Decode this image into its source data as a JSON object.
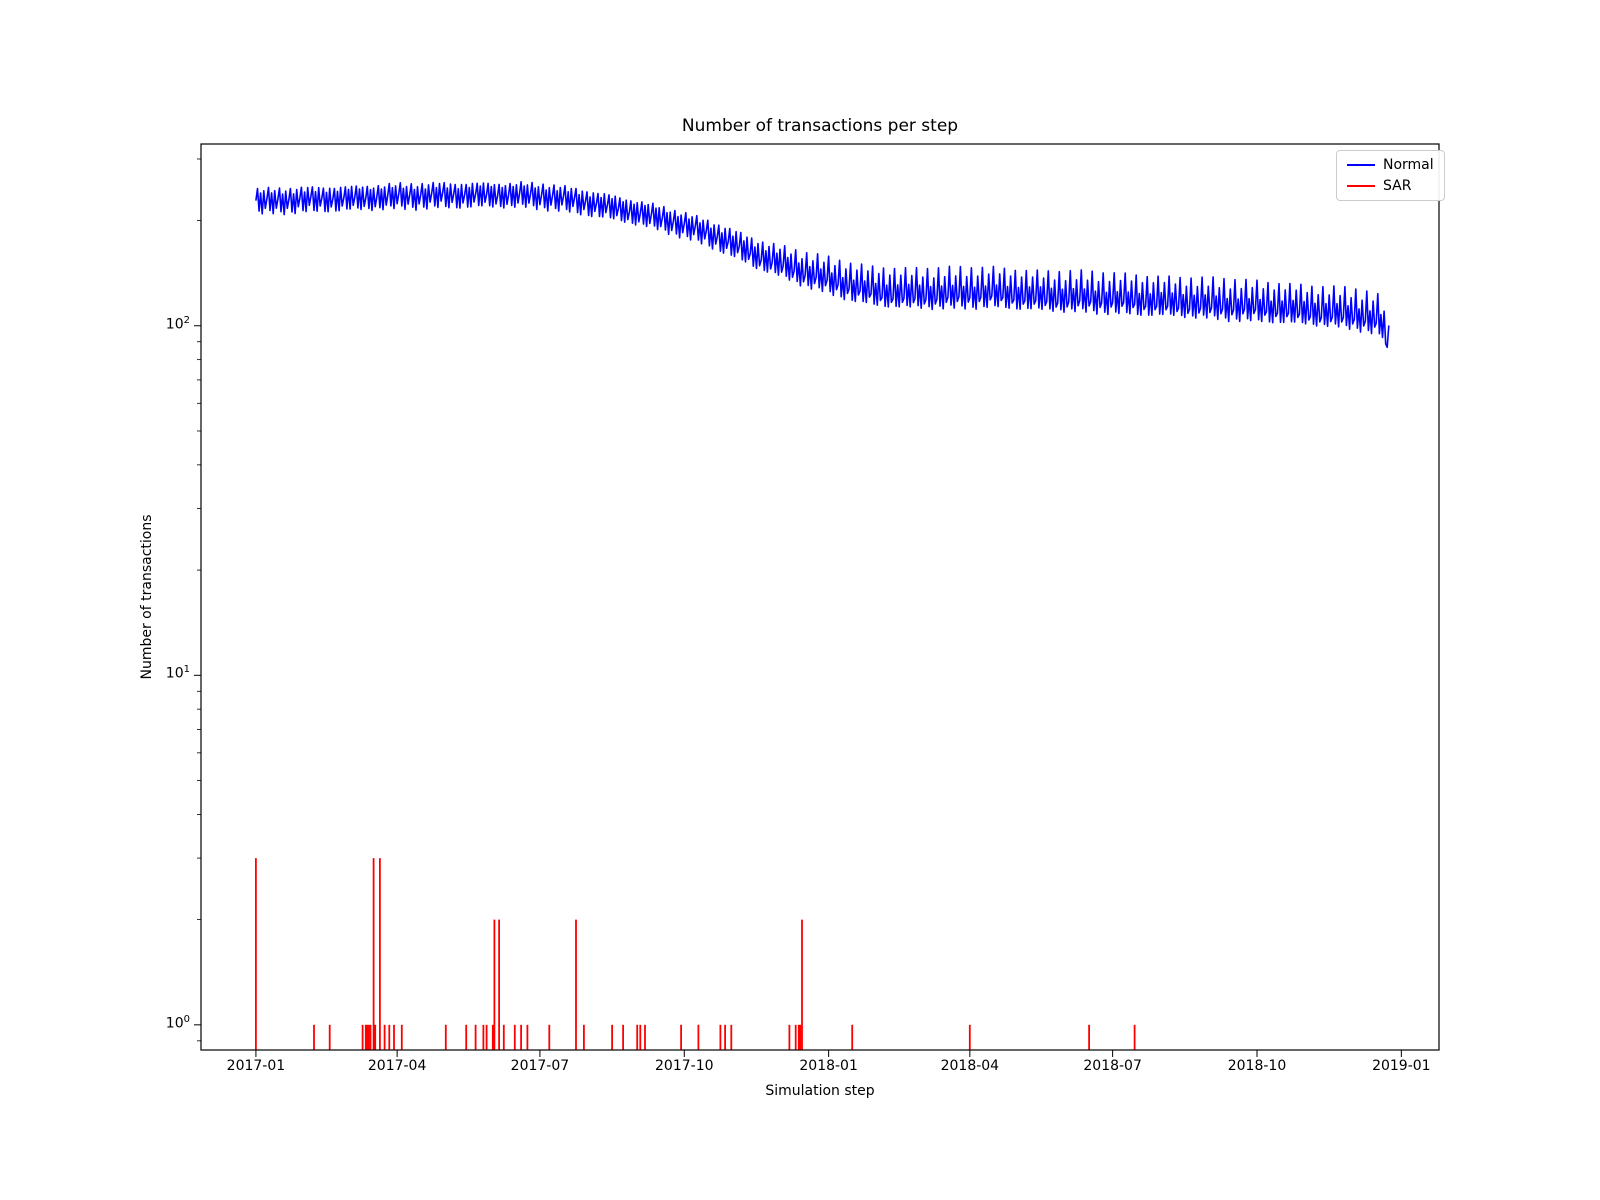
{
  "chart_data": {
    "type": "line",
    "title": "Number of transactions per step",
    "xlabel": "Simulation step",
    "ylabel": "Number of transactions",
    "yscale": "log",
    "grid": false,
    "legend_position": "upper right",
    "x_tick_labels": [
      "2017-01",
      "2017-04",
      "2017-07",
      "2017-10",
      "2018-01",
      "2018-04",
      "2018-07",
      "2018-10",
      "2019-01"
    ],
    "x_tick_days": [
      0,
      90,
      181,
      273,
      365,
      455,
      546,
      638,
      730
    ],
    "x_start_date": "2017-01-01",
    "x_range_days": [
      -35,
      754
    ],
    "y_tick_exponents": [
      0,
      1,
      2
    ],
    "y_tick_values": [
      1,
      10,
      100
    ],
    "y_log_range": [
      -0.072,
      2.52
    ],
    "series": [
      {
        "name": "Normal",
        "color": "#0000ff",
        "day_range": [
          0,
          722
        ],
        "trend": [
          [
            0,
            228
          ],
          [
            30,
            231
          ],
          [
            60,
            233
          ],
          [
            90,
            236
          ],
          [
            120,
            238
          ],
          [
            150,
            238
          ],
          [
            170,
            238
          ],
          [
            185,
            236
          ],
          [
            200,
            231
          ],
          [
            215,
            225
          ],
          [
            230,
            218
          ],
          [
            245,
            211
          ],
          [
            260,
            203
          ],
          [
            275,
            194
          ],
          [
            290,
            184
          ],
          [
            305,
            172
          ],
          [
            320,
            160
          ],
          [
            335,
            152
          ],
          [
            350,
            144
          ],
          [
            365,
            138
          ],
          [
            380,
            132
          ],
          [
            395,
            128
          ],
          [
            415,
            126
          ],
          [
            440,
            126
          ],
          [
            470,
            127
          ],
          [
            500,
            124
          ],
          [
            530,
            123
          ],
          [
            560,
            121
          ],
          [
            590,
            119
          ],
          [
            620,
            117
          ],
          [
            650,
            115
          ],
          [
            680,
            112
          ],
          [
            700,
            110
          ],
          [
            712,
            107
          ],
          [
            718,
            104
          ],
          [
            722,
            86
          ]
        ],
        "weekly_pattern_early": [
          1.0,
          1.075,
          0.925,
          1.045,
          0.915,
          1.065,
          0.945
        ],
        "weekly_pattern_late": [
          0.95,
          1.16,
          0.9,
          1.03,
          0.89,
          1.1,
          0.925
        ],
        "pattern_blend_days": [
          280,
          400
        ],
        "jitter": 0.012
      },
      {
        "name": "SAR",
        "color": "#ff0000",
        "events": [
          [
            0,
            3
          ],
          [
            37,
            1
          ],
          [
            47,
            1
          ],
          [
            68,
            1
          ],
          [
            70,
            1
          ],
          [
            71,
            1
          ],
          [
            72,
            1
          ],
          [
            73,
            1
          ],
          [
            75,
            3
          ],
          [
            76,
            1
          ],
          [
            79,
            3
          ],
          [
            82,
            1
          ],
          [
            85,
            1
          ],
          [
            88,
            1
          ],
          [
            93,
            1
          ],
          [
            121,
            1
          ],
          [
            134,
            1
          ],
          [
            140,
            1
          ],
          [
            145,
            1
          ],
          [
            147,
            1
          ],
          [
            151,
            1
          ],
          [
            152,
            2
          ],
          [
            155,
            2
          ],
          [
            158,
            1
          ],
          [
            165,
            1
          ],
          [
            169,
            1
          ],
          [
            173,
            1
          ],
          [
            187,
            1
          ],
          [
            204,
            2
          ],
          [
            209,
            1
          ],
          [
            227,
            1
          ],
          [
            234,
            1
          ],
          [
            243,
            1
          ],
          [
            245,
            1
          ],
          [
            248,
            1
          ],
          [
            271,
            1
          ],
          [
            282,
            1
          ],
          [
            296,
            1
          ],
          [
            299,
            1
          ],
          [
            303,
            1
          ],
          [
            340,
            1
          ],
          [
            344,
            1
          ],
          [
            346,
            1
          ],
          [
            347,
            1
          ],
          [
            348,
            2
          ],
          [
            380,
            1
          ],
          [
            455,
            1
          ],
          [
            531,
            1
          ],
          [
            560,
            1
          ]
        ]
      }
    ]
  }
}
